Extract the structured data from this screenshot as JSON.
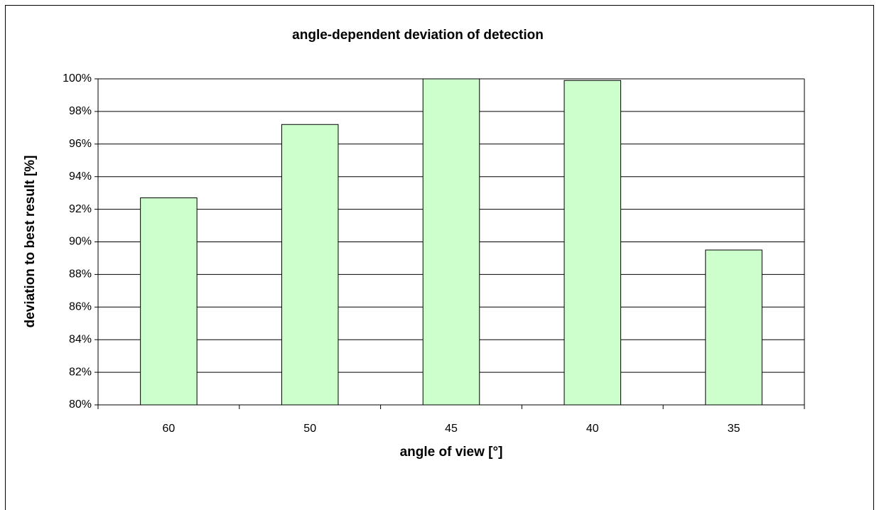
{
  "chart_data": {
    "type": "bar",
    "title": "angle-dependent deviation of detection",
    "x_label": "angle of view [°]",
    "y_label": "deviation to best result [%]",
    "categories": [
      "60",
      "50",
      "45",
      "40",
      "35"
    ],
    "values": [
      92.7,
      97.2,
      100,
      99.9,
      89.5
    ],
    "color": "#ccffcc",
    "ylim": [
      80,
      100
    ],
    "yticks": [
      {
        "value": 80,
        "label": "80%"
      },
      {
        "value": 82,
        "label": "82%"
      },
      {
        "value": 84,
        "label": "84%"
      },
      {
        "value": 86,
        "label": "86%"
      },
      {
        "value": 88,
        "label": "88%"
      },
      {
        "value": 90,
        "label": "90%"
      },
      {
        "value": 92,
        "label": "92%"
      },
      {
        "value": 94,
        "label": "94%"
      },
      {
        "value": 96,
        "label": "96%"
      },
      {
        "value": 98,
        "label": "98%"
      },
      {
        "value": 100,
        "label": "100%"
      }
    ],
    "grid": true
  }
}
